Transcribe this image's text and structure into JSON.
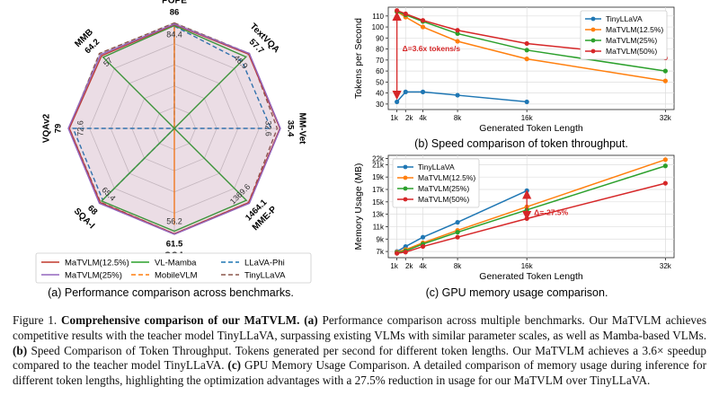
{
  "colors": {
    "tinyllava_line": "#1f77b4",
    "matvlm_12_5": "#ff7f0e",
    "matvlm_25": "#2ca02c",
    "matvlm_50": "#d62728",
    "annotation": "#d62728",
    "radar_matvlm_12_5": "#c0392b",
    "radar_matvlm_25": "#9467bd",
    "radar_vl_mamba": "#2ca02c",
    "radar_mobilevlm": "#ff7f0e",
    "radar_llava_phi": "#1f77b4",
    "radar_tinyllava": "#8c564b"
  },
  "chart_data": [
    {
      "type": "radar",
      "axes": [
        "POPE",
        "TextVQA",
        "MM-Vet",
        "MME-P",
        "GQA",
        "SQA-I",
        "VQAv2",
        "MMB"
      ],
      "max_labels": [
        "86",
        "57.7",
        "35.4",
        "1464.1",
        "61.5",
        "68",
        "79",
        "64.2"
      ],
      "inner_labels": [
        "84.4",
        "48.9",
        "32.6",
        "1369.6",
        "56.2",
        "65.4",
        "72.6",
        "57"
      ],
      "series": [
        {
          "name": "MaTVLM(12.5%)",
          "values": [
            0.98,
            0.99,
            0.995,
            0.99,
            0.995,
            0.99,
            0.99,
            0.97
          ]
        },
        {
          "name": "MaTVLM(25%)",
          "values": [
            0.985,
            1.0,
            1.0,
            1.0,
            1.0,
            1.0,
            1.0,
            0.985
          ]
        },
        {
          "name": "VL-Mamba",
          "values": [
            0.97,
            0.955,
            0.0,
            0.96,
            0.97,
            0.97,
            0.0,
            0.95
          ]
        },
        {
          "name": "MobileVLM",
          "values": [
            0.96,
            0.0,
            0.0,
            0.0,
            0.91,
            0.0,
            0.0,
            0.0
          ]
        },
        {
          "name": "LLaVA-Phi",
          "values": [
            0.965,
            0.9,
            0.91,
            0.0,
            0.0,
            0.955,
            0.955,
            0.0
          ]
        },
        {
          "name": "TinyLLaVA",
          "values": [
            0.995,
            1.0,
            0.97,
            0.99,
            0.995,
            0.985,
            0.99,
            1.0
          ]
        }
      ],
      "caption": "(a) Performance comparison across benchmarks."
    },
    {
      "type": "line",
      "xlabel": "Generated Token Length",
      "ylabel": "Tokens per Second",
      "xlim": [
        0,
        33
      ],
      "ylim": [
        25,
        118
      ],
      "xticks": [
        1,
        2,
        4,
        8,
        16,
        32
      ],
      "xtick_labels": [
        "1k",
        "2k",
        "4k",
        "8k",
        "16k",
        "32k"
      ],
      "yticks": [
        30,
        40,
        50,
        60,
        70,
        80,
        90,
        100,
        110
      ],
      "series": [
        {
          "name": "TinyLLaVA",
          "x": [
            1,
            2,
            4,
            8,
            16
          ],
          "values": [
            32,
            41,
            41,
            38,
            32
          ]
        },
        {
          "name": "MaTVLM(12.5%)",
          "x": [
            1,
            2,
            4,
            8,
            16,
            32
          ],
          "values": [
            114,
            109,
            100,
            87,
            71,
            51
          ]
        },
        {
          "name": "MaTVLM(25%)",
          "x": [
            1,
            2,
            4,
            8,
            16,
            32
          ],
          "values": [
            114,
            111,
            105,
            94,
            79,
            60
          ]
        },
        {
          "name": "MaTVLM(50%)",
          "x": [
            1,
            2,
            4,
            8,
            16,
            32
          ],
          "values": [
            115,
            112,
            106,
            97,
            85,
            72
          ]
        }
      ],
      "annotation": "Δ=3.6x tokens/s",
      "legend": "top-right",
      "grid": true,
      "caption": "(b) Speed comparison of token throughput."
    },
    {
      "type": "line",
      "xlabel": "Generated Token Length",
      "ylabel": "Memory Usage (MB)",
      "xlim": [
        0,
        33
      ],
      "ylim": [
        6000,
        22500
      ],
      "xticks": [
        1,
        2,
        4,
        8,
        16,
        32
      ],
      "xtick_labels": [
        "1k",
        "2k",
        "4k",
        "8k",
        "16k",
        "32k"
      ],
      "yticks": [
        7000,
        9000,
        11000,
        13000,
        15000,
        17000,
        19000,
        21000,
        22000
      ],
      "ytick_labels": [
        "7k",
        "9k",
        "11k",
        "13k",
        "15k",
        "17k",
        "19k",
        "21k",
        "22k"
      ],
      "series": [
        {
          "name": "TinyLLaVA",
          "x": [
            1,
            2,
            4,
            8,
            16
          ],
          "values": [
            7000,
            7800,
            9300,
            11700,
            16800
          ]
        },
        {
          "name": "MaTVLM(12.5%)",
          "x": [
            1,
            2,
            4,
            8,
            16,
            32
          ],
          "values": [
            6900,
            7300,
            8400,
            10400,
            14200,
            21800
          ]
        },
        {
          "name": "MaTVLM(25%)",
          "x": [
            1,
            2,
            4,
            8,
            16,
            32
          ],
          "values": [
            6800,
            7100,
            8200,
            10100,
            13700,
            20800
          ]
        },
        {
          "name": "MaTVLM(50%)",
          "x": [
            1,
            2,
            4,
            8,
            16,
            32
          ],
          "values": [
            6700,
            6900,
            7800,
            9300,
            12300,
            18000
          ]
        }
      ],
      "annotation": "Δ=-27.5%",
      "legend": "top-left",
      "grid": true,
      "caption": "(c) GPU memory usage comparison."
    }
  ],
  "caption": {
    "figure_label": "Figure 1.",
    "bold_title": "Comprehensive comparison of our MaTVLM.",
    "part_a_label": "(a)",
    "part_a": "Performance comparison across multiple benchmarks. Our MaTVLM achieves competitive results with the teacher model TinyLLaVA, surpassing existing VLMs with similar parameter scales, as well as Mamba-based VLMs.",
    "part_b_label": "(b)",
    "part_b": "Speed Comparison of Token Throughput. Tokens generated per second for different token lengths. Our MaTVLM achieves a 3.6× speedup compared to the teacher model TinyLLaVA.",
    "part_c_label": "(c)",
    "part_c": "GPU Memory Usage Comparison. A detailed comparison of memory usage during inference for different token lengths, highlighting the optimization advantages with a 27.5% reduction in usage for our MaTVLM over TinyLLaVA."
  }
}
